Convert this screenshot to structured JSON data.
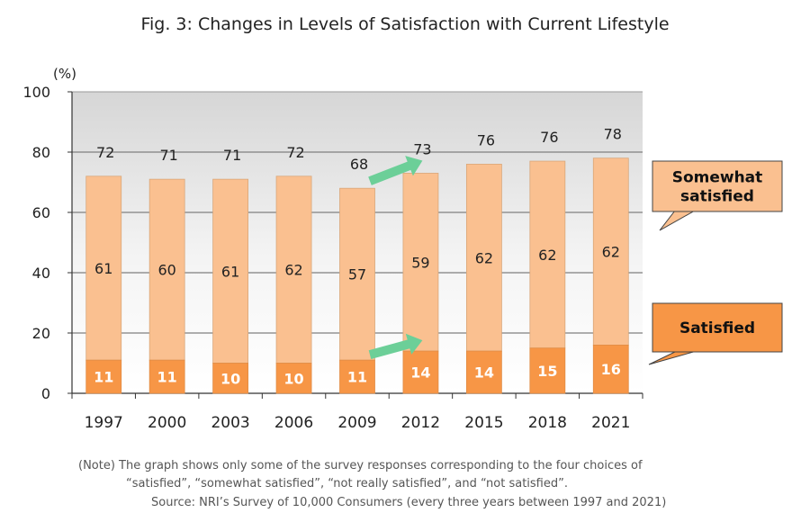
{
  "chart_data": {
    "type": "bar",
    "stacked": true,
    "title": "Fig. 3: Changes in Levels of Satisfaction with Current Lifestyle",
    "ylabel": "(%)",
    "xlabel": "",
    "ylim": [
      0,
      100
    ],
    "yticks": [
      0,
      20,
      40,
      60,
      80,
      100
    ],
    "grid": true,
    "categories": [
      "1997",
      "2000",
      "2003",
      "2006",
      "2009",
      "2012",
      "2015",
      "2018",
      "2021"
    ],
    "series": [
      {
        "name": "Satisfied",
        "values": [
          11,
          11,
          10,
          10,
          11,
          14,
          14,
          15,
          16
        ],
        "color": "#f79646"
      },
      {
        "name": "Somewhat satisfied",
        "values": [
          61,
          60,
          61,
          62,
          57,
          59,
          62,
          62,
          62
        ],
        "color": "#fac090"
      }
    ],
    "totals": [
      72,
      71,
      71,
      72,
      68,
      73,
      76,
      76,
      78
    ],
    "callouts": [
      {
        "label_lines": [
          "Somewhat",
          "satisfied"
        ],
        "color": "#fac090"
      },
      {
        "label_lines": [
          "Satisfied"
        ],
        "color": "#f79646"
      }
    ],
    "arrow_color": "#6ccf98"
  },
  "notes": [
    "(Note) The graph shows only some of the survey responses corresponding to the four choices of",
    "“satisfied”, “somewhat satisfied”, “not really satisfied”, and “not satisfied”."
  ],
  "source": "Source: NRI’s Survey of 10,000 Consumers (every three years between 1997 and 2021)"
}
